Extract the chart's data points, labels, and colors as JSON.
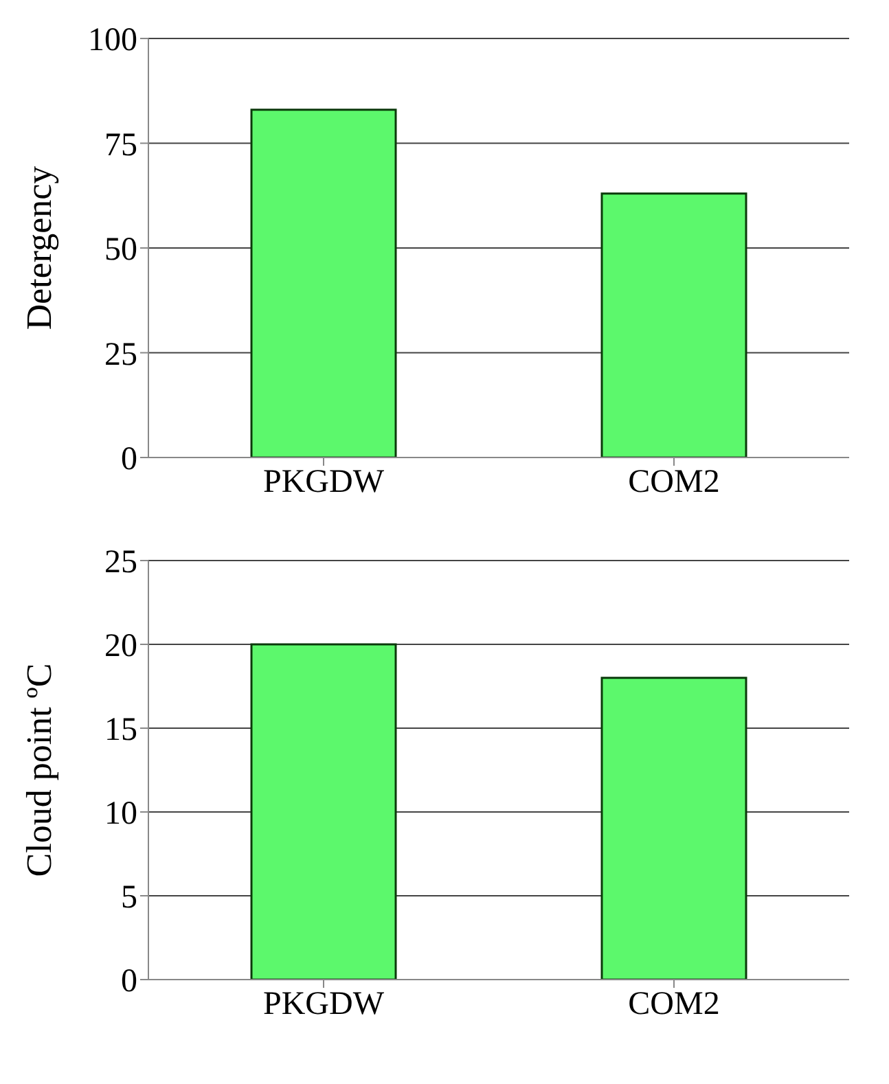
{
  "chart_data": [
    {
      "type": "bar",
      "categories": [
        "PKGDW",
        "COM2"
      ],
      "values": [
        83,
        63
      ],
      "color": "#5cf86c",
      "ylabel": "Detergency",
      "ylim": [
        0,
        100
      ],
      "yticks": [
        0,
        25,
        50,
        75,
        100
      ],
      "grid": "y"
    },
    {
      "type": "bar",
      "categories": [
        "PKGDW",
        "COM2"
      ],
      "values": [
        20,
        18
      ],
      "color": "#5cf86c",
      "ylabel": "Cloud point ºC",
      "ylim": [
        0,
        25
      ],
      "yticks": [
        0,
        5,
        10,
        15,
        20,
        25
      ],
      "grid": "y"
    }
  ]
}
